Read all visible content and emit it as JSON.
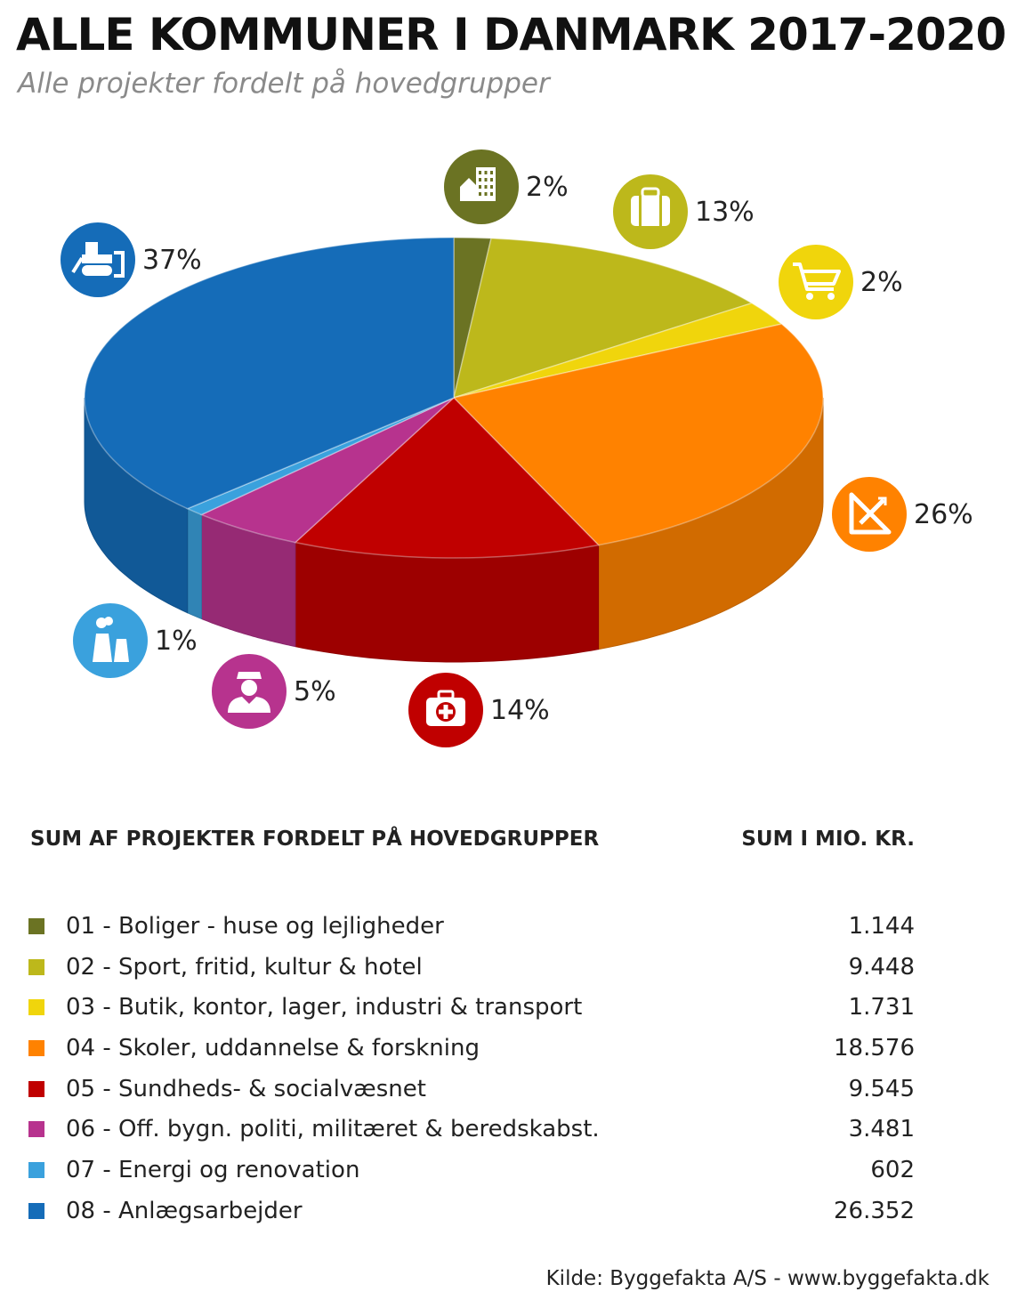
{
  "title": "ALLE KOMMUNER I DANMARK 2017-2020",
  "subtitle": "Alle projekter fordelt på hovedgrupper",
  "table": {
    "left_header": "SUM AF PROJEKTER FORDELT PÅ HOVEDGRUPPER",
    "right_header": "SUM I MIO. KR."
  },
  "source": "Kilde: Byggefakta A/S - www.byggefakta.dk",
  "chart_data": {
    "type": "pie",
    "unit": "mio. kr.",
    "categories": [
      "01 - Boliger - huse og lejligheder",
      "02 - Sport, fritid, kultur & hotel",
      "03 - Butik, kontor, lager, industri & transport",
      "04 - Skoler, uddannelse & forskning",
      "05 - Sundheds- & socialvæsnet",
      "06 - Off. bygn. politi, militæret & beredskabst.",
      "07 - Energi og renovation",
      "08 - Anlægsarbejder"
    ],
    "values": [
      1144,
      9448,
      1731,
      18576,
      9545,
      3481,
      602,
      26352
    ],
    "value_labels": [
      "1.144",
      "9.448",
      "1.731",
      "18.576",
      "9.545",
      "3.481",
      "602",
      "26.352"
    ],
    "percent_labels": [
      "2%",
      "13%",
      "2%",
      "26%",
      "14%",
      "5%",
      "1%",
      "37%"
    ],
    "colors": [
      "#6b7323",
      "#bdb81b",
      "#f0d50c",
      "#ff8200",
      "#c00000",
      "#b7338e",
      "#3aa1dd",
      "#156cb8"
    ],
    "icons": [
      "building-icon",
      "luggage-icon",
      "cart-icon",
      "ruler-triangle-icon",
      "first-aid-icon",
      "officer-icon",
      "power-plant-icon",
      "bulldozer-icon"
    ]
  }
}
